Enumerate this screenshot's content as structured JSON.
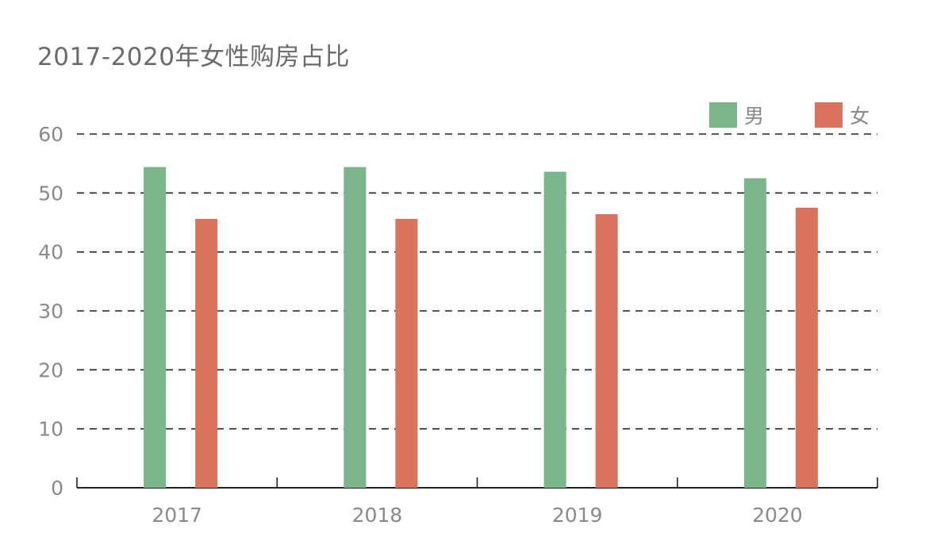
{
  "title": "2017-2020年女性购房占比",
  "legend": [
    {
      "label": "男",
      "color": "#7cb48c"
    },
    {
      "label": "女",
      "color": "#d9735d"
    }
  ],
  "chart_data": {
    "type": "bar",
    "title": "2017-2020年女性购房占比",
    "xlabel": "",
    "ylabel": "",
    "categories": [
      "2017",
      "2018",
      "2019",
      "2020"
    ],
    "series": [
      {
        "name": "男",
        "color": "#7cb48c",
        "values": [
          54.4,
          54.4,
          53.6,
          52.5
        ]
      },
      {
        "name": "女",
        "color": "#d9735d",
        "values": [
          45.6,
          45.6,
          46.4,
          47.5
        ]
      }
    ],
    "ylim": [
      0,
      60
    ],
    "yticks": [
      0,
      10,
      20,
      30,
      40,
      50,
      60
    ],
    "grid": true,
    "grid_style": "dashed",
    "legend_position": "top-right"
  }
}
